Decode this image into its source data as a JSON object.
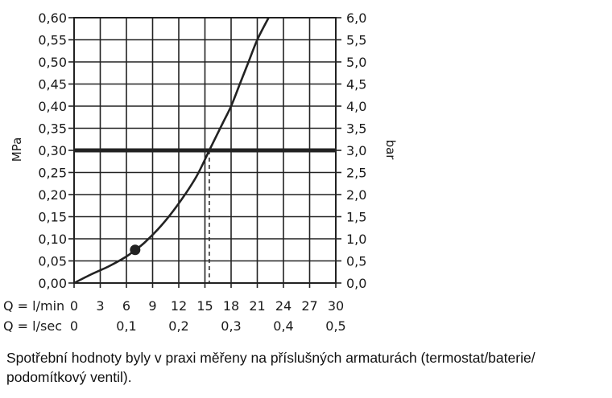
{
  "chart_data": {
    "type": "line",
    "left_axis": {
      "label": "MPa",
      "range": [
        0,
        0.6
      ],
      "ticks": [
        "0,00",
        "0,05",
        "0,10",
        "0,15",
        "0,20",
        "0,25",
        "0,30",
        "0,35",
        "0,40",
        "0,45",
        "0,50",
        "0,55",
        "0,60"
      ]
    },
    "right_axis": {
      "label": "bar",
      "range": [
        0,
        6
      ],
      "ticks": [
        "0,0",
        "0,5",
        "1,0",
        "1,5",
        "2,0",
        "2,5",
        "3,0",
        "3,5",
        "4,0",
        "4,5",
        "5,0",
        "5,5",
        "6,0"
      ]
    },
    "x_axis_lmin": {
      "label": "Q = l/min",
      "range": [
        0,
        30
      ],
      "ticks": [
        "0",
        "3",
        "6",
        "9",
        "12",
        "15",
        "18",
        "21",
        "24",
        "27",
        "30"
      ]
    },
    "x_axis_lsec": {
      "label": "Q = l/sec",
      "ticks": [
        "0",
        "0,1",
        "0,2",
        "0,3",
        "0,4",
        "0,5"
      ]
    },
    "grid": true,
    "series": [
      {
        "x": [
          0,
          2,
          4,
          6,
          7,
          8,
          10,
          12,
          14,
          15.5,
          17,
          18,
          19,
          20,
          21,
          22.3
        ],
        "y": [
          0,
          0.02,
          0.038,
          0.06,
          0.075,
          0.09,
          0.13,
          0.18,
          0.24,
          0.3,
          0.36,
          0.4,
          0.45,
          0.5,
          0.55,
          0.6
        ]
      }
    ],
    "reference_line": {
      "y": 0.3
    },
    "marked_point": {
      "x": 7,
      "y": 0.075
    },
    "drop_line": {
      "x": 15.5,
      "y": 0.3
    }
  },
  "caption": "Spotřební hodnoty byly v praxi měřeny na příslušných armaturách (termostat/baterie/ podomítkový ventil)."
}
